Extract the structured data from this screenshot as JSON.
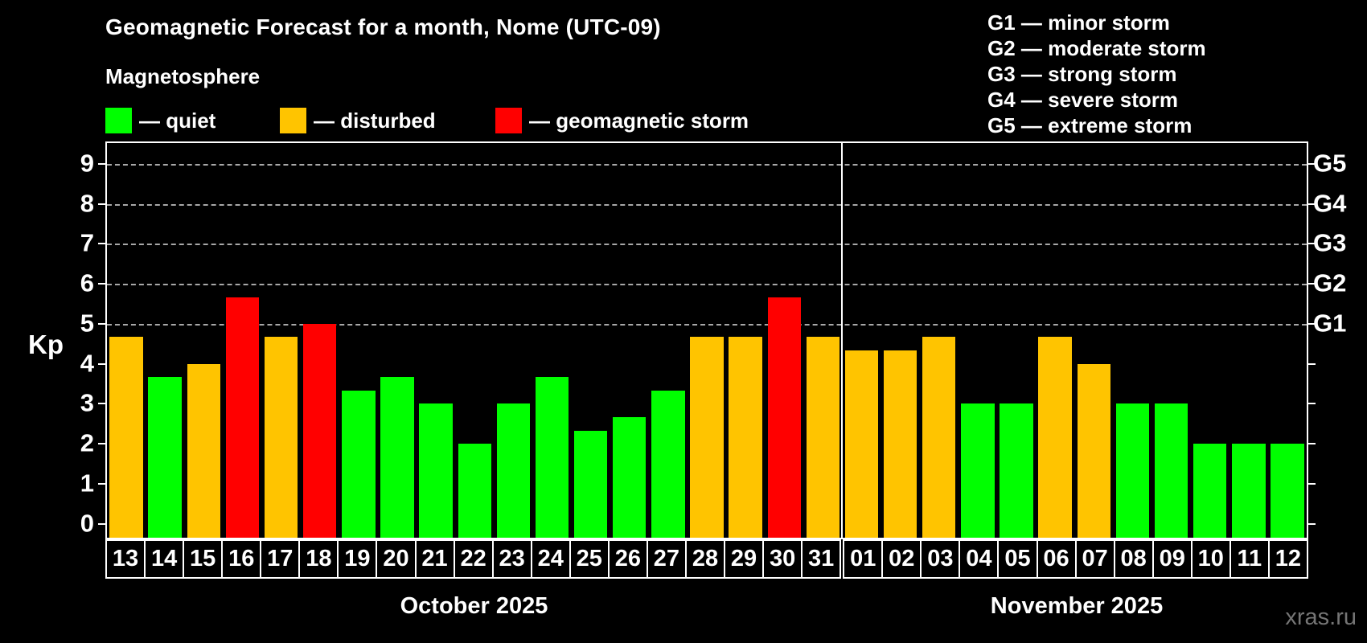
{
  "title": "Geomagnetic Forecast for a month, Nome (UTC-09)",
  "subtitle": "Magnetosphere",
  "legend": {
    "quiet_label": "— quiet",
    "disturbed_label": "— disturbed",
    "storm_label": "— geomagnetic storm"
  },
  "g_legend": [
    "G1 — minor storm",
    "G2 — moderate storm",
    "G3 — strong storm",
    "G4 — severe storm",
    "G5 — extreme storm"
  ],
  "y_axis": {
    "label": "Kp",
    "ticks": [
      0,
      1,
      2,
      3,
      4,
      5,
      6,
      7,
      8,
      9
    ]
  },
  "right_axis": {
    "labels": [
      {
        "text": "G1",
        "kp": 5
      },
      {
        "text": "G2",
        "kp": 6
      },
      {
        "text": "G3",
        "kp": 7
      },
      {
        "text": "G4",
        "kp": 8
      },
      {
        "text": "G5",
        "kp": 9
      }
    ]
  },
  "watermark": "xras.ru",
  "chart_data": {
    "type": "bar",
    "title": "Geomagnetic Forecast for a month, Nome (UTC-09)",
    "ylabel": "Kp",
    "ylim": [
      0,
      9
    ],
    "gridlines_at": [
      5,
      6,
      7,
      8,
      9
    ],
    "grid": "dashed horizontal at Kp 5-9 only",
    "legend_position": "top",
    "colors": {
      "quiet": "#00ff00",
      "disturbed": "#ffc400",
      "storm": "#ff0000",
      "background": "#000000",
      "frame": "#ffffff",
      "gridline": "#a8a8a8"
    },
    "months": [
      {
        "label": "October 2025",
        "days": [
          {
            "day": "13",
            "kp": 4.67,
            "status": "disturbed"
          },
          {
            "day": "14",
            "kp": 3.67,
            "status": "quiet"
          },
          {
            "day": "15",
            "kp": 4.0,
            "status": "disturbed"
          },
          {
            "day": "16",
            "kp": 5.67,
            "status": "storm"
          },
          {
            "day": "17",
            "kp": 4.67,
            "status": "disturbed"
          },
          {
            "day": "18",
            "kp": 5.0,
            "status": "storm"
          },
          {
            "day": "19",
            "kp": 3.33,
            "status": "quiet"
          },
          {
            "day": "20",
            "kp": 3.67,
            "status": "quiet"
          },
          {
            "day": "21",
            "kp": 3.0,
            "status": "quiet"
          },
          {
            "day": "22",
            "kp": 2.0,
            "status": "quiet"
          },
          {
            "day": "23",
            "kp": 3.0,
            "status": "quiet"
          },
          {
            "day": "24",
            "kp": 3.67,
            "status": "quiet"
          },
          {
            "day": "25",
            "kp": 2.33,
            "status": "quiet"
          },
          {
            "day": "26",
            "kp": 2.67,
            "status": "quiet"
          },
          {
            "day": "27",
            "kp": 3.33,
            "status": "quiet"
          },
          {
            "day": "28",
            "kp": 4.67,
            "status": "disturbed"
          },
          {
            "day": "29",
            "kp": 4.67,
            "status": "disturbed"
          },
          {
            "day": "30",
            "kp": 5.67,
            "status": "storm"
          },
          {
            "day": "31",
            "kp": 4.67,
            "status": "disturbed"
          }
        ]
      },
      {
        "label": "November 2025",
        "days": [
          {
            "day": "01",
            "kp": 4.33,
            "status": "disturbed"
          },
          {
            "day": "02",
            "kp": 4.33,
            "status": "disturbed"
          },
          {
            "day": "03",
            "kp": 4.67,
            "status": "disturbed"
          },
          {
            "day": "04",
            "kp": 3.0,
            "status": "quiet"
          },
          {
            "day": "05",
            "kp": 3.0,
            "status": "quiet"
          },
          {
            "day": "06",
            "kp": 4.67,
            "status": "disturbed"
          },
          {
            "day": "07",
            "kp": 4.0,
            "status": "disturbed"
          },
          {
            "day": "08",
            "kp": 3.0,
            "status": "quiet"
          },
          {
            "day": "09",
            "kp": 3.0,
            "status": "quiet"
          },
          {
            "day": "10",
            "kp": 2.0,
            "status": "quiet"
          },
          {
            "day": "11",
            "kp": 2.0,
            "status": "quiet"
          },
          {
            "day": "12",
            "kp": 2.0,
            "status": "quiet"
          }
        ]
      }
    ]
  }
}
